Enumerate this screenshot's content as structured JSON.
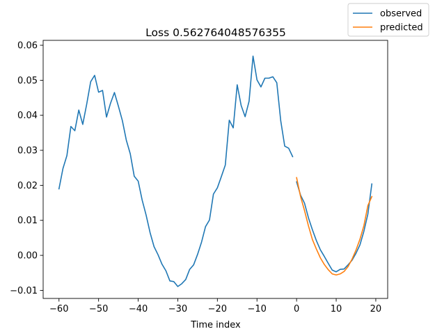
{
  "chart_data": {
    "type": "line",
    "title": "Loss 0.562764048576355",
    "xlabel": "Time index",
    "ylabel": "",
    "xlim": [
      -64,
      23
    ],
    "ylim": [
      -0.0123,
      0.0614
    ],
    "x_ticks": [
      -60,
      -50,
      -40,
      -30,
      -20,
      -10,
      0,
      10,
      20
    ],
    "y_ticks": [
      -0.01,
      0.0,
      0.01,
      0.02,
      0.03,
      0.04,
      0.05,
      0.06
    ],
    "x_tick_labels": [
      "−60",
      "−50",
      "−40",
      "−30",
      "−20",
      "−10",
      "0",
      "10",
      "20"
    ],
    "y_tick_labels": [
      "−0.01",
      "0.00",
      "0.01",
      "0.02",
      "0.03",
      "0.04",
      "0.05",
      "0.06"
    ],
    "grid": false,
    "legend_position": "top-right (outside plot)",
    "series": [
      {
        "name": "observed",
        "color": "#1f77b4",
        "segments": [
          {
            "x": [
              -60,
              -59,
              -58,
              -57,
              -56,
              -55,
              -54,
              -53,
              -52,
              -51,
              -50,
              -49,
              -48,
              -47,
              -46,
              -45,
              -44,
              -43,
              -42,
              -41,
              -40,
              -39,
              -38,
              -37,
              -36,
              -35,
              -34,
              -33,
              -32,
              -31,
              -30,
              -29,
              -28,
              -27,
              -26,
              -25,
              -24,
              -23,
              -22,
              -21,
              -20,
              -19,
              -18,
              -17,
              -16,
              -15,
              -14,
              -13,
              -12,
              -11,
              -10,
              -9,
              -8,
              -7,
              -6,
              -5,
              -4,
              -3,
              -2,
              -1
            ],
            "y": [
              0.019,
              0.0248,
              0.0285,
              0.0368,
              0.0356,
              0.0415,
              0.0374,
              0.0432,
              0.0496,
              0.0514,
              0.0466,
              0.0471,
              0.0395,
              0.0434,
              0.0465,
              0.0426,
              0.0385,
              0.0329,
              0.029,
              0.0226,
              0.0212,
              0.0158,
              0.0115,
              0.0065,
              0.0025,
              0.0002,
              -0.0025,
              -0.0044,
              -0.0073,
              -0.0075,
              -0.0089,
              -0.0081,
              -0.0069,
              -0.004,
              -0.0027,
              0.0003,
              0.0038,
              0.0082,
              0.0101,
              0.0175,
              0.0193,
              0.0225,
              0.0258,
              0.0386,
              0.0364,
              0.0487,
              0.0428,
              0.0396,
              0.044,
              0.0569,
              0.0501,
              0.0481,
              0.0506,
              0.0506,
              0.051,
              0.0493,
              0.0384,
              0.0312,
              0.0306,
              0.0282
            ]
          },
          {
            "x": [
              0,
              1,
              2,
              3,
              4,
              5,
              6,
              7,
              8,
              9,
              10,
              11,
              12,
              13,
              14,
              15,
              16,
              17,
              18,
              19
            ],
            "y": [
              0.021,
              0.0172,
              0.0149,
              0.0107,
              0.0073,
              0.0042,
              0.0016,
              -0.0003,
              -0.0023,
              -0.0042,
              -0.0047,
              -0.004,
              -0.0039,
              -0.0027,
              -0.0014,
              0.0006,
              0.003,
              0.0069,
              0.0118,
              0.0204
            ]
          }
        ]
      },
      {
        "name": "predicted",
        "color": "#ff7f0e",
        "segments": [
          {
            "x": [
              0,
              1,
              2,
              3,
              4,
              5,
              6,
              7,
              8,
              9,
              10,
              11,
              12,
              13,
              14,
              15,
              16,
              17,
              18,
              19
            ],
            "y": [
              0.0222,
              0.0168,
              0.0128,
              0.0084,
              0.0045,
              0.0018,
              -0.0007,
              -0.0026,
              -0.0041,
              -0.0053,
              -0.0056,
              -0.0053,
              -0.0046,
              -0.0032,
              -0.0011,
              0.0015,
              0.0046,
              0.0085,
              0.0142,
              0.0168
            ]
          }
        ]
      }
    ]
  }
}
